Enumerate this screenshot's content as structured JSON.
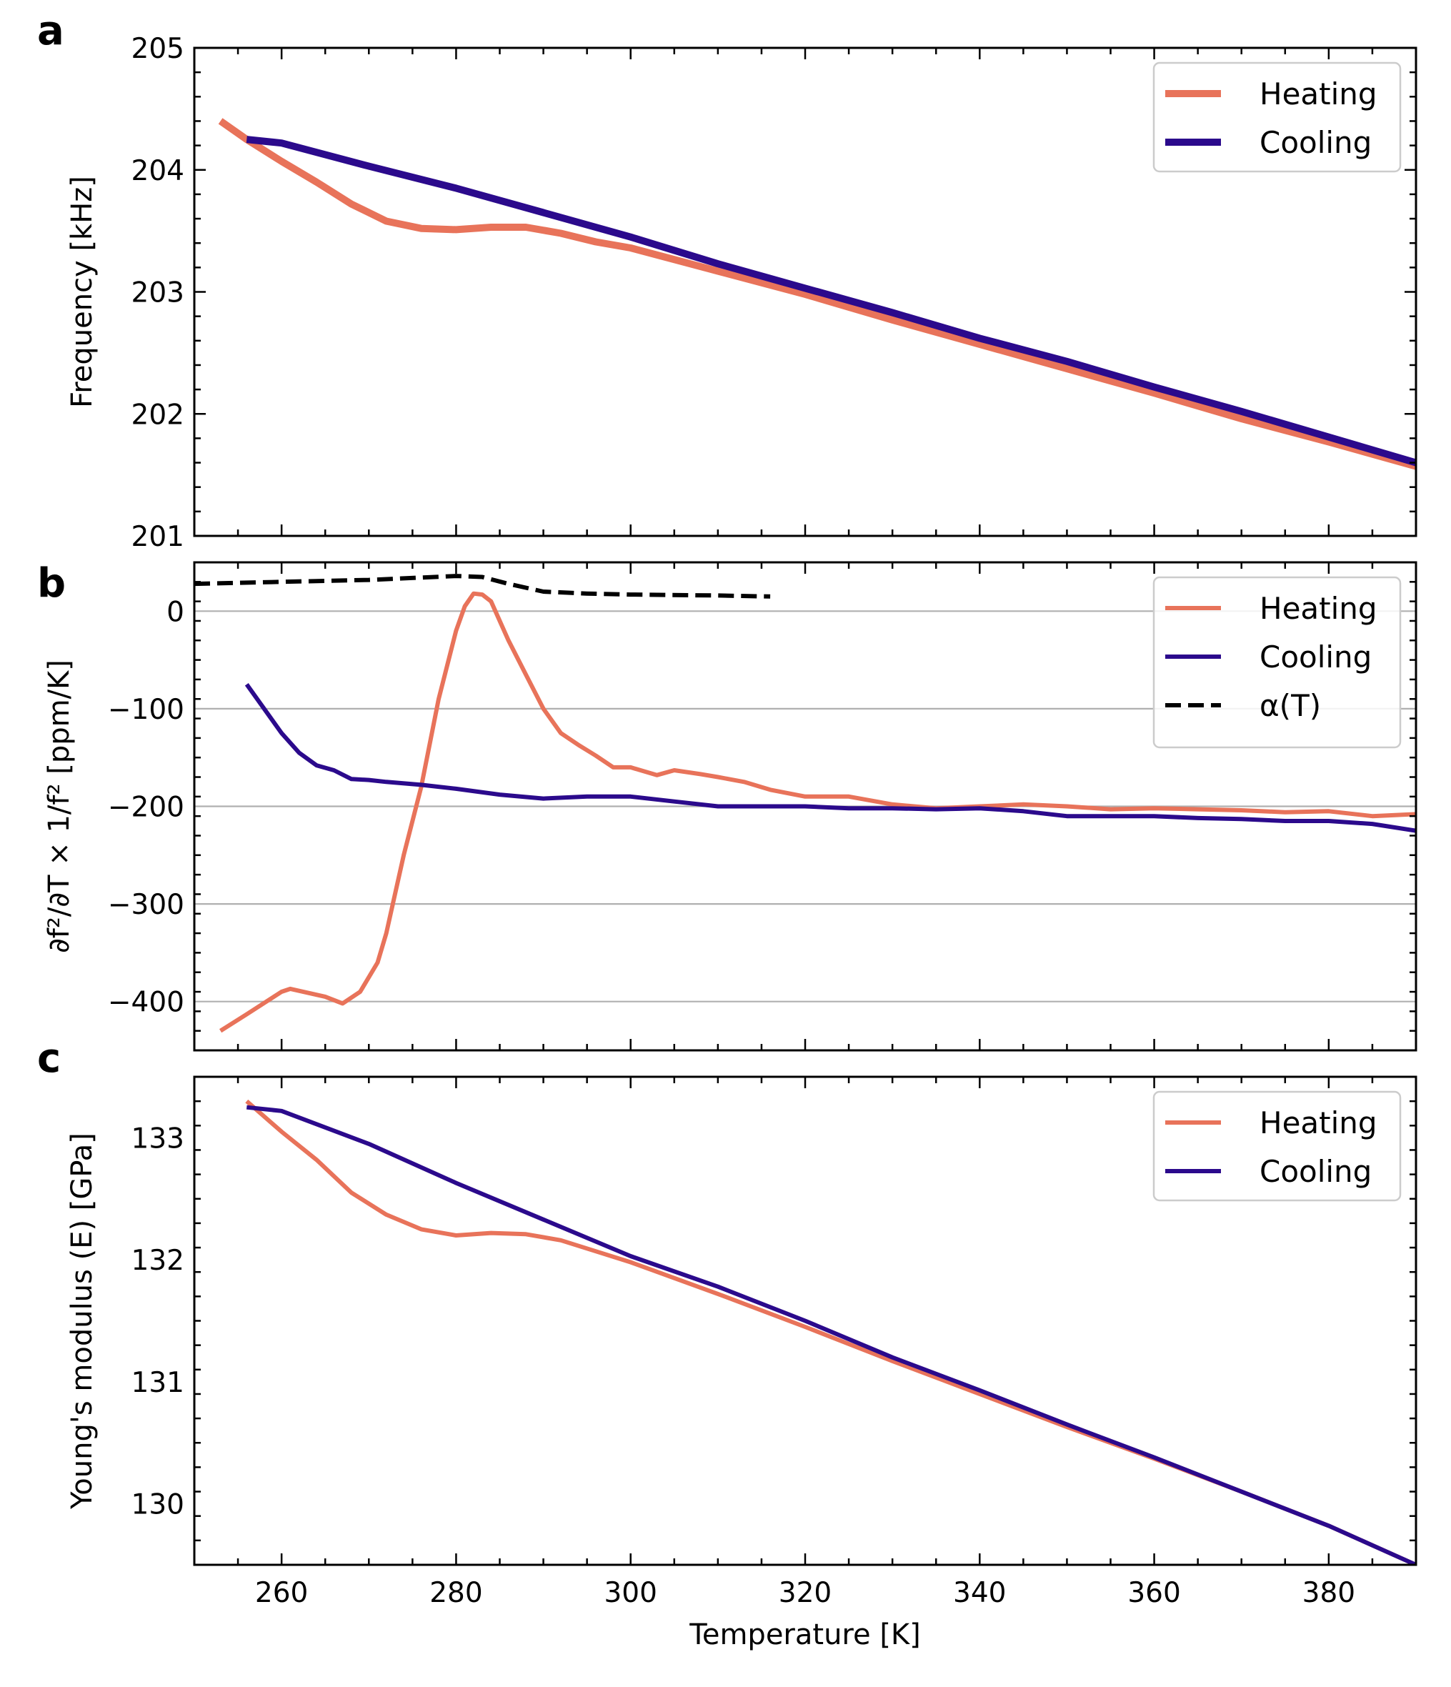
{
  "chart_data": [
    {
      "panel_letter": "a",
      "type": "line",
      "ylabel": "Frequency [kHz]",
      "xlim": [
        250,
        390
      ],
      "ylim": [
        201,
        205
      ],
      "yticks": [
        201,
        202,
        203,
        204,
        205
      ],
      "grid": false,
      "legend": "top-right",
      "series": [
        {
          "name": "Heating",
          "color": "#E8735A",
          "x": [
            253,
            256,
            260,
            264,
            268,
            272,
            276,
            280,
            284,
            288,
            292,
            296,
            300,
            310,
            320,
            330,
            340,
            350,
            360,
            370,
            380,
            390
          ],
          "y": [
            204.4,
            204.25,
            204.07,
            203.9,
            203.72,
            203.58,
            203.52,
            203.51,
            203.53,
            203.53,
            203.48,
            203.41,
            203.36,
            203.17,
            202.98,
            202.77,
            202.57,
            202.37,
            202.17,
            201.96,
            201.77,
            201.57
          ]
        },
        {
          "name": "Cooling",
          "color": "#2B0A8C",
          "x": [
            256,
            260,
            270,
            280,
            290,
            300,
            310,
            320,
            330,
            340,
            350,
            360,
            370,
            380,
            390
          ],
          "y": [
            204.25,
            204.22,
            204.03,
            203.85,
            203.65,
            203.45,
            203.23,
            203.03,
            202.83,
            202.62,
            202.43,
            202.22,
            202.02,
            201.81,
            201.6
          ]
        }
      ]
    },
    {
      "panel_letter": "b",
      "type": "line",
      "ylabel": "∂f²/∂T × 1/f² [ppm/K]",
      "xlim": [
        250,
        390
      ],
      "ylim": [
        -450,
        50
      ],
      "yticks": [
        0,
        -100,
        -200,
        -300,
        -400
      ],
      "ytick_labels": [
        "0",
        "−100",
        "−200",
        "−300",
        "−400"
      ],
      "grid": true,
      "legend": "top-right",
      "series": [
        {
          "name": "Heating",
          "color": "#E8735A",
          "x": [
            253,
            256,
            260,
            261,
            265,
            267,
            269,
            271,
            272,
            273,
            274,
            276,
            278,
            280,
            281,
            282,
            283,
            284,
            286,
            288,
            290,
            292,
            294,
            296,
            298,
            300,
            303,
            305,
            308,
            310,
            313,
            316,
            320,
            325,
            330,
            335,
            340,
            345,
            350,
            355,
            360,
            365,
            370,
            375,
            380,
            385,
            390
          ],
          "y": [
            -430,
            -413,
            -390,
            -387,
            -395,
            -402,
            -390,
            -360,
            -330,
            -290,
            -250,
            -180,
            -90,
            -20,
            5,
            18,
            17,
            10,
            -30,
            -65,
            -100,
            -125,
            -137,
            -148,
            -160,
            -160,
            -168,
            -163,
            -167,
            -170,
            -175,
            -183,
            -190,
            -190,
            -198,
            -202,
            -200,
            -198,
            -200,
            -203,
            -202,
            -203,
            -204,
            -206,
            -205,
            -210,
            -208
          ]
        },
        {
          "name": "Cooling",
          "color": "#2B0A8C",
          "x": [
            256,
            258,
            260,
            262,
            264,
            266,
            268,
            270,
            272,
            276,
            280,
            285,
            290,
            295,
            300,
            305,
            310,
            315,
            320,
            325,
            330,
            335,
            340,
            345,
            350,
            355,
            360,
            365,
            370,
            375,
            380,
            385,
            390
          ],
          "y": [
            -75,
            -100,
            -125,
            -145,
            -158,
            -163,
            -172,
            -173,
            -175,
            -178,
            -182,
            -188,
            -192,
            -190,
            -190,
            -195,
            -200,
            -200,
            -200,
            -202,
            -202,
            -203,
            -202,
            -205,
            -210,
            -210,
            -210,
            -212,
            -213,
            -215,
            -215,
            -218,
            -225
          ]
        },
        {
          "name": "α(T)",
          "color": "#000000",
          "dashed": true,
          "x": [
            250,
            260,
            270,
            280,
            283,
            286,
            290,
            295,
            300,
            310,
            316
          ],
          "y": [
            28,
            30,
            32,
            36,
            35,
            28,
            20,
            18,
            17,
            16,
            15
          ]
        }
      ]
    },
    {
      "panel_letter": "c",
      "type": "line",
      "ylabel": "Young's modulus (E) [GPa]",
      "xlabel": "Temperature [K]",
      "xlim": [
        250,
        390
      ],
      "ylim": [
        129.5,
        133.5
      ],
      "yticks": [
        130,
        131,
        132,
        133
      ],
      "xticks": [
        260,
        280,
        300,
        320,
        340,
        360,
        380
      ],
      "grid": false,
      "legend": "top-right",
      "series": [
        {
          "name": "Heating",
          "color": "#E8735A",
          "x": [
            256,
            260,
            264,
            268,
            272,
            276,
            280,
            284,
            288,
            292,
            296,
            300,
            310,
            320,
            330,
            340,
            350,
            360,
            370,
            380,
            390
          ],
          "y": [
            133.3,
            133.05,
            132.82,
            132.55,
            132.37,
            132.25,
            132.2,
            132.22,
            132.21,
            132.16,
            132.07,
            131.98,
            131.72,
            131.45,
            131.17,
            130.9,
            130.63,
            130.37,
            130.1,
            129.82,
            129.5
          ]
        },
        {
          "name": "Cooling",
          "color": "#2B0A8C",
          "x": [
            256,
            260,
            270,
            280,
            290,
            300,
            310,
            320,
            330,
            340,
            350,
            360,
            370,
            380,
            390
          ],
          "y": [
            133.25,
            133.22,
            132.95,
            132.63,
            132.33,
            132.03,
            131.78,
            131.5,
            131.2,
            130.93,
            130.65,
            130.38,
            130.1,
            129.82,
            129.5
          ]
        }
      ]
    }
  ]
}
